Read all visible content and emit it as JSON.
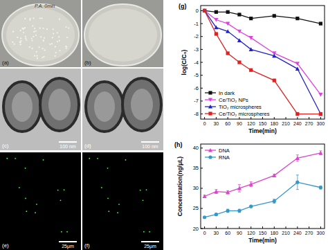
{
  "chart_data": [
    {
      "type": "line",
      "title": "(g)",
      "x_label": "Time(min)",
      "y_label": "log(C/C₀)",
      "x": [
        0,
        30,
        60,
        90,
        120,
        180,
        240,
        300
      ],
      "series": [
        {
          "name": "In dark",
          "color": "#111111",
          "marker": "square",
          "values": [
            0,
            -0.1,
            -0.1,
            -0.3,
            -0.6,
            -0.4,
            -0.6,
            -1.0
          ]
        },
        {
          "name": "Ce/TiO₂ NPs",
          "color": "#e040e0",
          "marker": "triangle-down",
          "values": [
            0,
            -0.7,
            -1.0,
            -1.6,
            -2.1,
            -3.3,
            -4.1,
            -6.5
          ]
        },
        {
          "name": "TiO₂ microspheres",
          "color": "#2222cc",
          "marker": "triangle",
          "values": [
            0,
            -1.3,
            -1.6,
            -2.3,
            -3.0,
            -3.5,
            -4.5,
            -8.0
          ]
        },
        {
          "name": "Ce/TiO₂ microspheres",
          "color": "#dd2222",
          "marker": "square",
          "values": [
            0,
            -1.8,
            -3.3,
            -4.0,
            -4.6,
            -5.4,
            -8.0,
            -8.0
          ]
        }
      ],
      "xlim": [
        -10,
        310
      ],
      "xticks": [
        0,
        30,
        60,
        90,
        120,
        150,
        180,
        210,
        240,
        270,
        300
      ],
      "ylim": [
        -8.4,
        0.4
      ],
      "yticks": [
        0,
        -1,
        -2,
        -3,
        -4,
        -5,
        -6,
        -7,
        -8
      ],
      "legend": "lower left"
    },
    {
      "type": "line",
      "title": "(h)",
      "x_label": "Time(min)",
      "y_label": "Concentration(ng/μL)",
      "x": [
        0,
        30,
        60,
        90,
        120,
        180,
        240,
        300
      ],
      "series": [
        {
          "name": "DNA",
          "color": "#dd44cc",
          "marker": "triangle",
          "values": [
            28,
            29.2,
            29,
            30,
            31,
            33.2,
            37.5,
            38.8
          ],
          "errors": [
            0.3,
            0.5,
            0.4,
            0.9,
            0.6,
            0.3,
            0.8,
            0.5
          ]
        },
        {
          "name": "RNA",
          "color": "#3399cc",
          "marker": "circle",
          "values": [
            22.8,
            23.5,
            24.4,
            24.4,
            25.5,
            26.8,
            31.5,
            30.2
          ],
          "errors": [
            0.2,
            0.3,
            0.4,
            0.4,
            0.3,
            0.5,
            1.8,
            0.4
          ]
        }
      ],
      "xlim": [
        -10,
        310
      ],
      "xticks": [
        0,
        30,
        60,
        90,
        120,
        150,
        180,
        210,
        240,
        270,
        300
      ],
      "ylim": [
        20,
        41
      ],
      "yticks": [
        20,
        25,
        30,
        35,
        40
      ],
      "legend": "upper left"
    }
  ],
  "images": [
    {
      "label": "(a)",
      "annotation": "P.A. 0min"
    },
    {
      "label": "(b)"
    },
    {
      "label": "(c)",
      "scale_bar": "100 nm"
    },
    {
      "label": "(d)",
      "scale_bar": "100 nm"
    },
    {
      "label": "(e)",
      "scale_bar": "25μm"
    },
    {
      "label": "(f)",
      "scale_bar": "25μm"
    }
  ]
}
